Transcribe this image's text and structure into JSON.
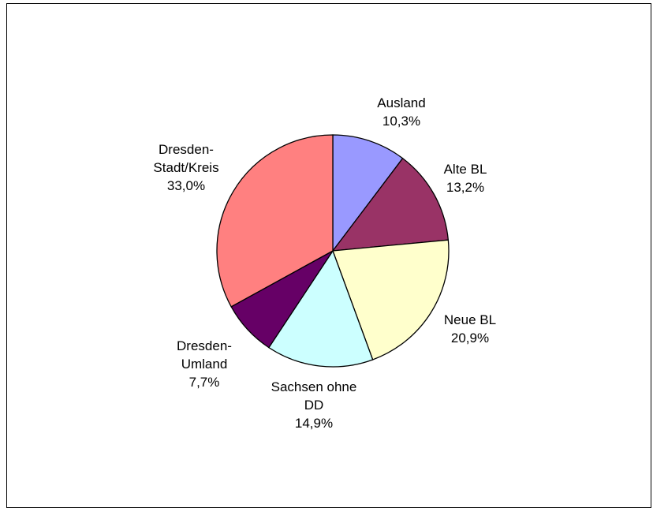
{
  "chart_data": {
    "type": "pie",
    "title": "",
    "slices": [
      {
        "label_lines": [
          "Ausland"
        ],
        "percent_label": "10,3%",
        "value": 10.3,
        "color": "#9999ff"
      },
      {
        "label_lines": [
          "Alte BL"
        ],
        "percent_label": "13,2%",
        "value": 13.2,
        "color": "#993366"
      },
      {
        "label_lines": [
          "Neue BL"
        ],
        "percent_label": "20,9%",
        "value": 20.9,
        "color": "#ffffcc"
      },
      {
        "label_lines": [
          "Sachsen ohne",
          "DD"
        ],
        "percent_label": "14,9%",
        "value": 14.9,
        "color": "#ccffff"
      },
      {
        "label_lines": [
          "Dresden-",
          "Umland"
        ],
        "percent_label": "7,7%",
        "value": 7.7,
        "color": "#660066"
      },
      {
        "label_lines": [
          "Dresden-",
          "Stadt/Kreis"
        ],
        "percent_label": "33,0%",
        "value": 33.0,
        "color": "#ff8080"
      }
    ],
    "start_angle_deg": 0,
    "direction": "clockwise",
    "legend": "none",
    "slice_outline_color": "#000000"
  }
}
